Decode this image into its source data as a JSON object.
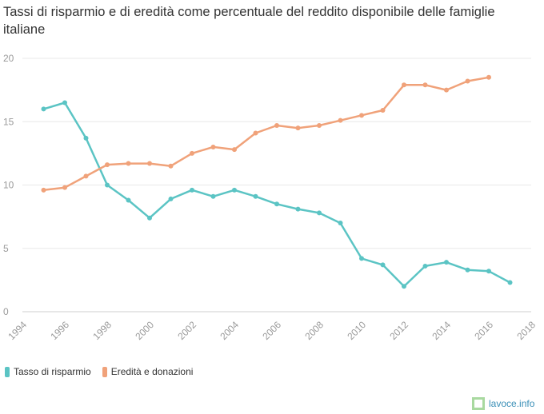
{
  "chart_data": {
    "type": "line",
    "title": "Tassi di risparmio e di eredità come percentuale del reddito disponibile delle famiglie italiane",
    "xlabel": "",
    "ylabel": "",
    "xlim": [
      1994,
      2018
    ],
    "ylim": [
      0,
      20
    ],
    "x_ticks": [
      "1994",
      "1996",
      "1998",
      "2000",
      "2002",
      "2004",
      "2006",
      "2008",
      "2010",
      "2012",
      "2014",
      "2016",
      "2018"
    ],
    "y_ticks": [
      "0",
      "5",
      "10",
      "15",
      "20"
    ],
    "grid": true,
    "legend_position": "bottom-left",
    "series": [
      {
        "name": "Tasso di risparmio",
        "color": "#5bc4c4",
        "x": [
          1995,
          1996,
          1997,
          1998,
          1999,
          2000,
          2001,
          2002,
          2003,
          2004,
          2005,
          2006,
          2007,
          2008,
          2009,
          2010,
          2011,
          2012,
          2013,
          2014,
          2015,
          2016,
          2017
        ],
        "values": [
          16.0,
          16.5,
          13.7,
          10.0,
          8.8,
          7.4,
          8.9,
          9.6,
          9.1,
          9.6,
          9.1,
          8.5,
          8.1,
          7.8,
          7.0,
          4.2,
          3.7,
          2.0,
          3.6,
          3.9,
          3.3,
          3.2,
          2.3
        ]
      },
      {
        "name": "Eredità e donazioni",
        "color": "#f0a27a",
        "x": [
          1995,
          1996,
          1997,
          1998,
          1999,
          2000,
          2001,
          2002,
          2003,
          2004,
          2005,
          2006,
          2007,
          2008,
          2009,
          2010,
          2011,
          2012,
          2013,
          2014,
          2015,
          2016
        ],
        "values": [
          9.6,
          9.8,
          10.7,
          11.6,
          11.7,
          11.7,
          11.5,
          12.5,
          13.0,
          12.8,
          14.1,
          14.7,
          14.5,
          14.7,
          15.1,
          15.5,
          15.9,
          17.9,
          17.9,
          17.5,
          18.2,
          18.5
        ]
      }
    ]
  },
  "legend": {
    "items": [
      {
        "label": "Tasso di risparmio",
        "color": "#5bc4c4"
      },
      {
        "label": "Eredità e donazioni",
        "color": "#f0a27a"
      }
    ]
  },
  "brand": {
    "text": "lavoce.info",
    "icon": "square-logo-icon",
    "icon_color": "#a9d9a0",
    "text_color": "#3a8fb7"
  }
}
